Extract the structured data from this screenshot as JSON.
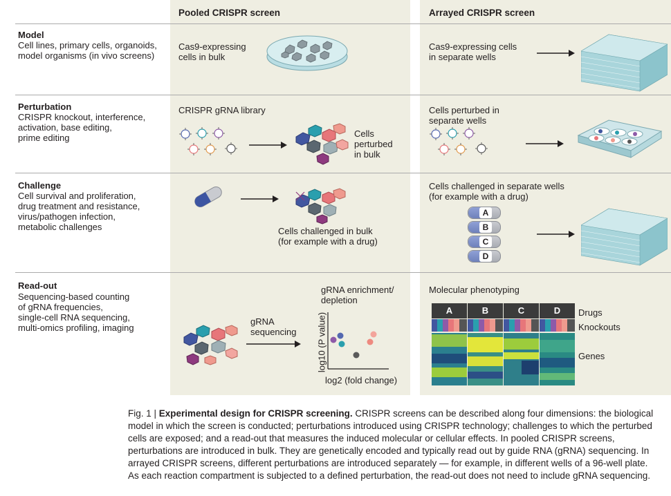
{
  "columns": {
    "pooled": "Pooled CRISPR screen",
    "arrayed": "Arrayed CRISPR screen"
  },
  "rows": [
    {
      "title": "Model",
      "description": "Cell lines, primary cells, organoids,\nmodel organisms (in vivo screens)",
      "pooled_text": "Cas9-expressing\ncells in bulk",
      "arrayed_text": "Cas9-expressing cells\nin separate wells"
    },
    {
      "title": "Perturbation",
      "description": "CRISPR knockout, interference,\nactivation, base editing,\nprime editing",
      "pooled_text": "CRISPR gRNA library",
      "pooled_result": "Cells\nperturbed\nin bulk",
      "arrayed_text": "Cells perturbed in\nseparate wells"
    },
    {
      "title": "Challenge",
      "description": "Cell survival and proliferation,\ndrug treatment and resistance,\nvirus/pathogen infection,\nmetabolic challenges",
      "pooled_text": "Cells challenged in bulk\n(for example with a drug)",
      "arrayed_text": "Cells challenged in separate wells\n(for example with a drug)",
      "drugs": [
        "A",
        "B",
        "C",
        "D"
      ]
    },
    {
      "title": "Read-out",
      "description": "Sequencing-based counting\nof gRNA frequencies,\nsingle-cell RNA sequencing,\nmulti-omics profiling, imaging",
      "pooled_arrow_label": "gRNA\nsequencing",
      "plot_title": "gRNA enrichment/\ndepletion",
      "plot_ylabel": "log10 (P value)",
      "plot_xlabel": "log2 (fold change)",
      "arrayed_text": "Molecular phenotyping",
      "heatmap_columns": [
        "A",
        "B",
        "C",
        "D"
      ],
      "heatmap_labels": {
        "drugs": "Drugs",
        "knockouts": "Knockouts",
        "genes": "Genes"
      }
    }
  ],
  "caption": {
    "label": "Fig. 1 | ",
    "title": "Experimental design for CRISPR screening.",
    "body": " CRISPR screens can be described along four dimensions: the biological model in which the screen is conducted; perturbations introduced using CRISPR technology; challenges to which the perturbed cells are exposed; and a read-out that measures the induced molecular or cellular effects. In pooled CRISPR screens, perturbations are introduced in bulk. They are genetically encoded and typically read out by guide RNA (gRNA) sequencing. In arrayed CRISPR screens, different perturbations are introduced separately — for example, in different wells of a 96-well plate. As each reaction compartment is subjected to a defined perturbation, the read-out does not need to include gRNA sequencing."
  },
  "colors": {
    "column_bg": "#efeee2",
    "plate": "#9bd3d8",
    "arrow": "#231f20",
    "plot_dots": [
      "#8e5aa8",
      "#2a9fae",
      "#ee8a80",
      "#f3a49b",
      "#5a5a5a"
    ]
  }
}
